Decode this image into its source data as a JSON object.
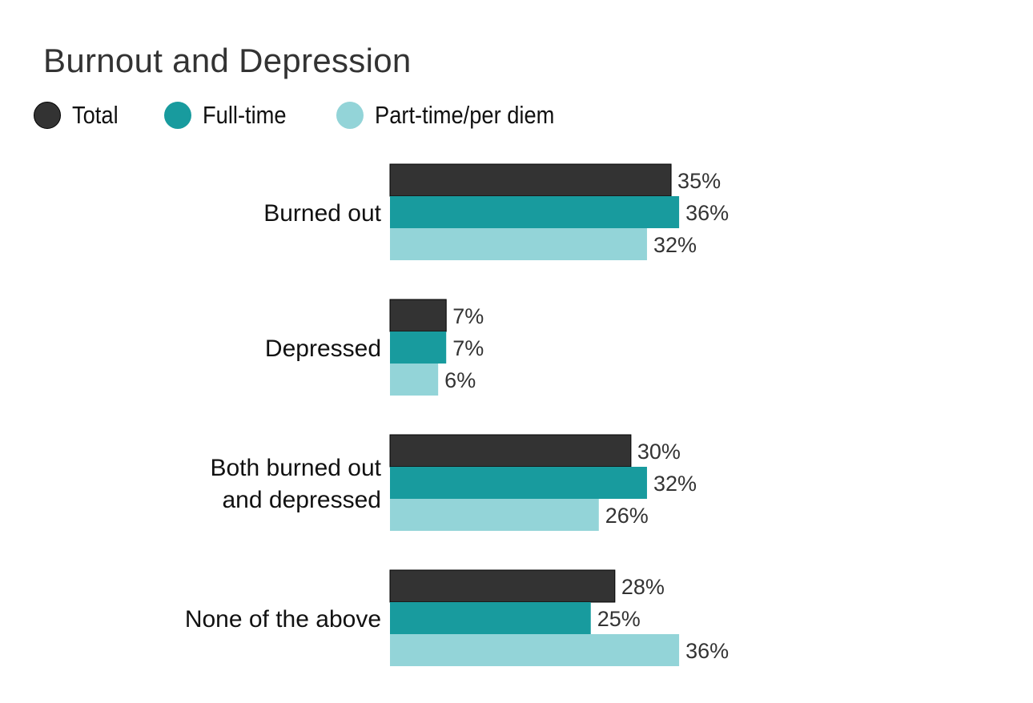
{
  "chart_data": {
    "type": "bar",
    "orientation": "horizontal",
    "title": "Burnout and Depression",
    "categories": [
      [
        "Burned out"
      ],
      [
        "Depressed"
      ],
      [
        "Both burned out",
        "and depressed"
      ],
      [
        "None of the above"
      ]
    ],
    "series": [
      {
        "name": "Total",
        "color": "#333333",
        "values": [
          35,
          7,
          30,
          28
        ],
        "labels": [
          "35%",
          "7%",
          "30%",
          "28%"
        ]
      },
      {
        "name": "Full-time",
        "color": "#189b9e",
        "values": [
          36,
          7,
          32,
          25
        ],
        "labels": [
          "36%",
          "7%",
          "32%",
          "25%"
        ]
      },
      {
        "name": "Part-time/per diem",
        "color": "#93d4d8",
        "values": [
          32,
          6,
          26,
          36
        ],
        "labels": [
          "32%",
          "6%",
          "26%",
          "36%"
        ]
      }
    ],
    "value_suffix": "%",
    "axis_visible": false,
    "grid": false,
    "legend_position": "top-left"
  }
}
